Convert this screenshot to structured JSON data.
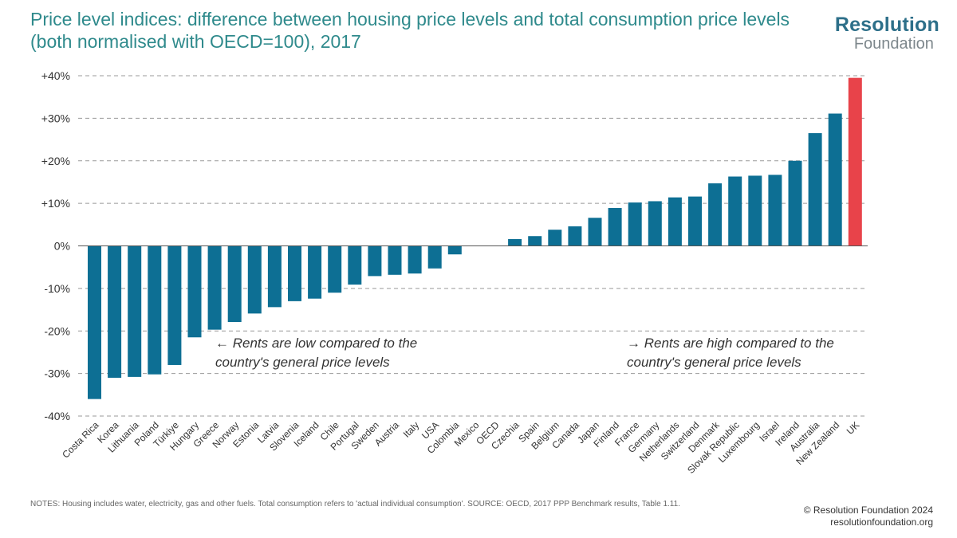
{
  "header": {
    "title": "Price level indices: difference between housing price levels and total consumption price levels (both normalised with OECD=100), 2017"
  },
  "logo": {
    "line1": "Resolution",
    "line2": "Foundation"
  },
  "footer": {
    "notes": "NOTES: Housing includes water, electricity, gas and other fuels. Total consumption refers to 'actual individual consumption'. SOURCE: OECD, 2017 PPP Benchmark results, Table 1.11.",
    "copyright": "© Resolution Foundation 2024",
    "website": "resolutionfoundation.org"
  },
  "colors": {
    "bar": "#0d6f94",
    "highlight": "#e8434a",
    "grid": "#999999",
    "axis": "#555555"
  },
  "chart_data": {
    "type": "bar",
    "categories": [
      "Costa Rica",
      "Korea",
      "Lithuania",
      "Poland",
      "Türkiye",
      "Hungary",
      "Greece",
      "Norway",
      "Estonia",
      "Latvia",
      "Slovenia",
      "Iceland",
      "Chile",
      "Portugal",
      "Sweden",
      "Austria",
      "Italy",
      "USA",
      "Colombia",
      "Mexico",
      "OECD",
      "Czechia",
      "Spain",
      "Belgium",
      "Canada",
      "Japan",
      "Finland",
      "France",
      "Germany",
      "Netherlands",
      "Switzerland",
      "Denmark",
      "Slovak Republic",
      "Luxembourg",
      "Israel",
      "Ireland",
      "Australia",
      "New Zealand",
      "UK"
    ],
    "values": [
      -36,
      -31,
      -30.8,
      -30.2,
      -28,
      -21.5,
      -19.7,
      -17.9,
      -15.9,
      -14.4,
      -13,
      -12.4,
      -11,
      -9.1,
      -7.1,
      -6.8,
      -6.5,
      -5.3,
      -2,
      0,
      0,
      1.6,
      2.3,
      3.8,
      4.6,
      6.6,
      8.9,
      10.2,
      10.5,
      11.4,
      11.6,
      14.7,
      16.3,
      16.5,
      16.7,
      20,
      26.5,
      31.1,
      39.5
    ],
    "highlight": "UK",
    "title": "",
    "xlabel": "",
    "ylabel": "",
    "ylim": [
      -40,
      40
    ],
    "yticks": [
      40,
      30,
      20,
      10,
      0,
      -10,
      -20,
      -30,
      -40
    ],
    "ytick_labels": [
      "+40%",
      "+30%",
      "+20%",
      "+10%",
      "0%",
      "-10%",
      "-20%",
      "-30%",
      "-40%"
    ],
    "grid": true,
    "annotations": [
      {
        "line1": "← Rents are low compared to the",
        "line2": "country's general price levels"
      },
      {
        "line1": "→ Rents are high compared to the",
        "line2": "country's general price levels"
      }
    ]
  }
}
